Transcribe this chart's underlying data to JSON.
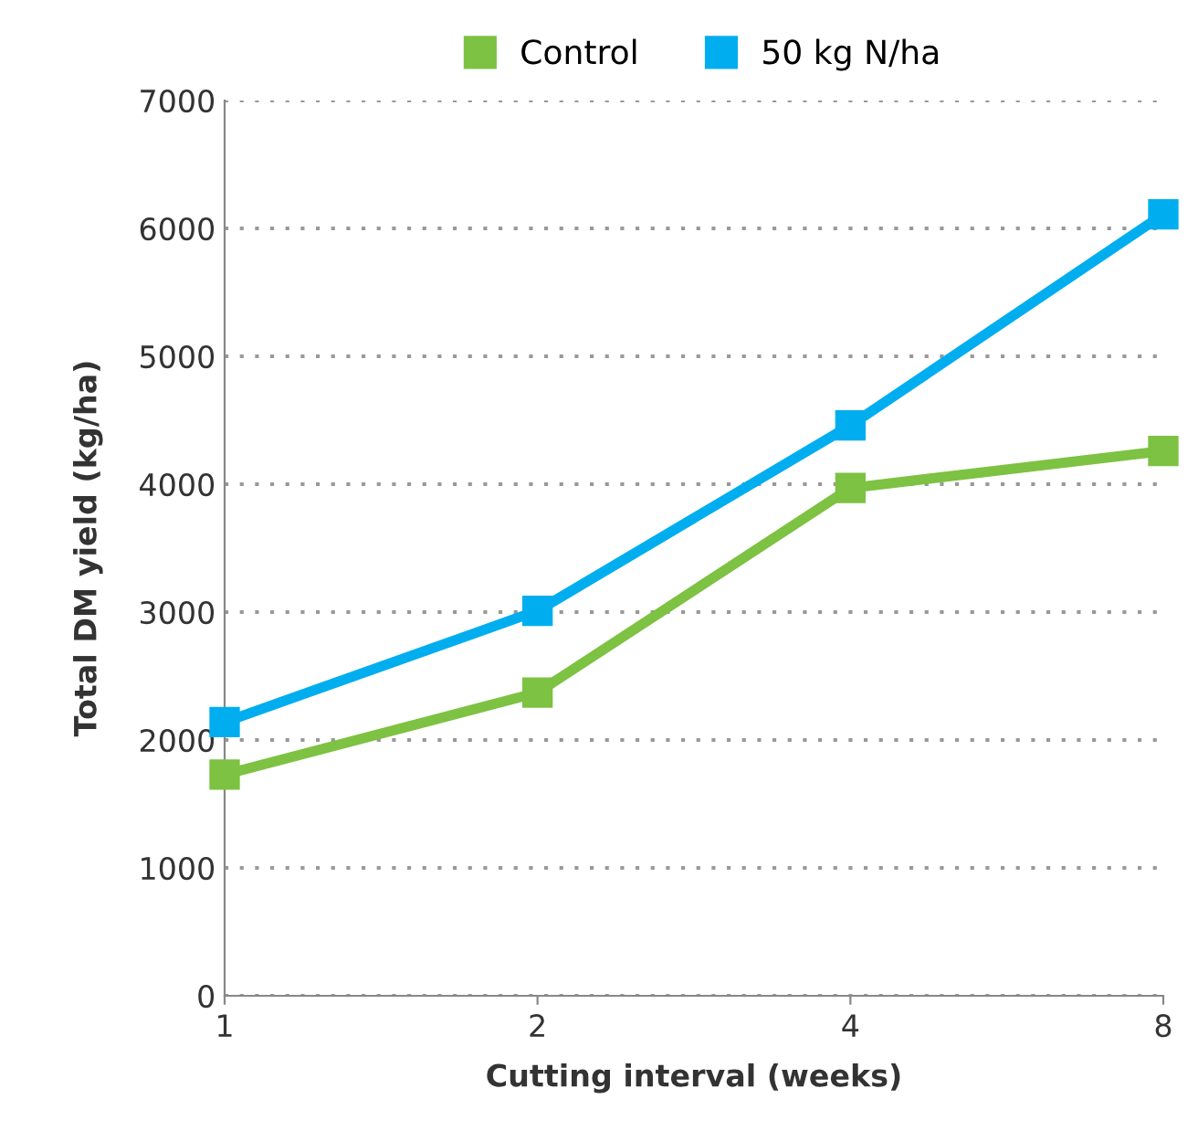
{
  "chart_data": {
    "type": "line",
    "xlabel": "Cutting interval (weeks)",
    "ylabel": "Total DM yield (kg/ha)",
    "categories": [
      "1",
      "2",
      "4",
      "8"
    ],
    "series": [
      {
        "name": "Control",
        "color": "#7dc242",
        "values": [
          1730,
          2370,
          3970,
          4260
        ]
      },
      {
        "name": "50 kg N/ha",
        "color": "#00aeef",
        "values": [
          2140,
          3010,
          4460,
          6110
        ]
      }
    ],
    "ylim": [
      0,
      7000
    ],
    "yticks": [
      0,
      1000,
      2000,
      3000,
      4000,
      5000,
      6000,
      7000
    ],
    "grid": "y",
    "legend": "top",
    "marker": "square",
    "line_style": "solid"
  }
}
